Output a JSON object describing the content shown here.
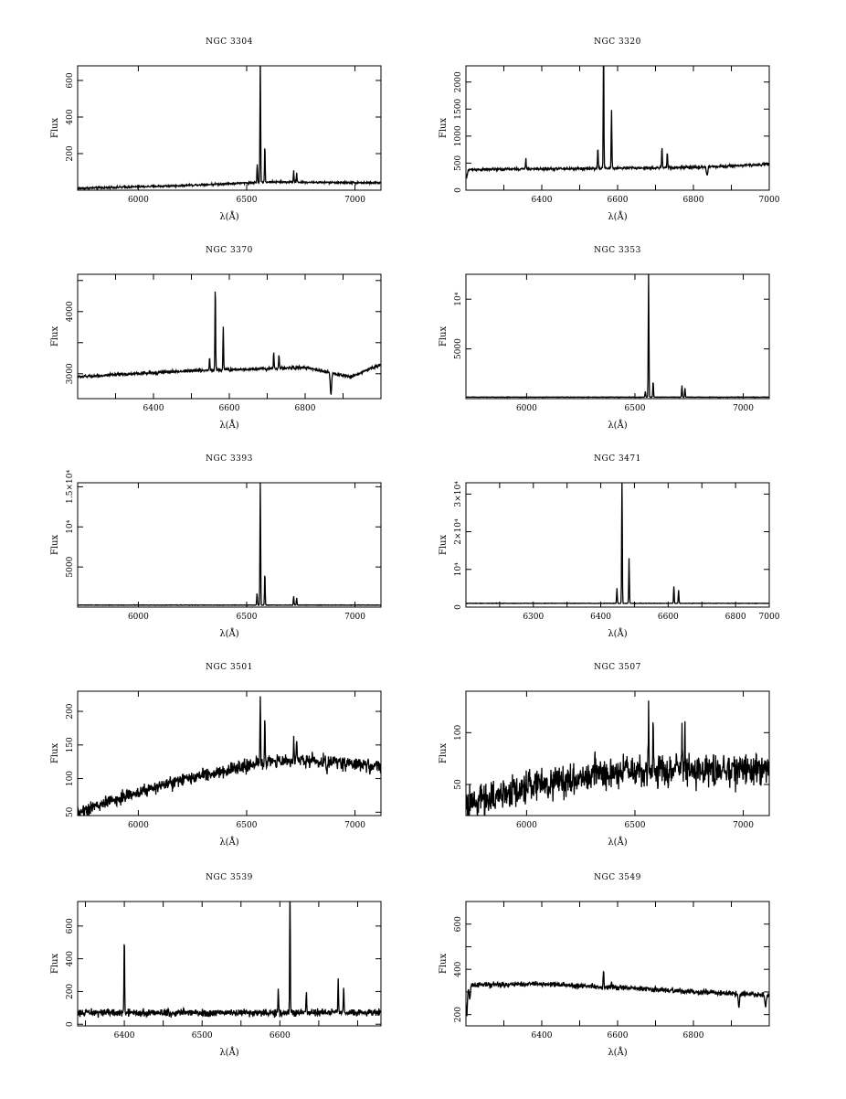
{
  "figure": {
    "panels_count": 10
  },
  "chart_data": [
    {
      "type": "line",
      "title": "NGC 3304",
      "xlabel": "λ(Å)",
      "ylabel": "Flux",
      "xlim": [
        5720,
        7120
      ],
      "ylim": [
        0,
        680
      ],
      "xticks": [
        6000,
        6500,
        7000
      ],
      "yticks": [
        200,
        400,
        600
      ],
      "ytick_labels": [
        "200",
        "400",
        "600"
      ],
      "continuum": [
        [
          5720,
          10
        ],
        [
          6200,
          25
        ],
        [
          6600,
          45
        ],
        [
          7120,
          40
        ]
      ],
      "noise": 4,
      "lines": [
        [
          6549,
          100
        ],
        [
          6563,
          680
        ],
        [
          6584,
          200
        ],
        [
          6717,
          60
        ],
        [
          6731,
          50
        ]
      ],
      "absorptions": []
    },
    {
      "type": "line",
      "title": "NGC 3320",
      "xlabel": "λ(Å)",
      "ylabel": "Flux",
      "xlim": [
        6200,
        7000
      ],
      "ylim": [
        0,
        2300
      ],
      "xticks": [
        6300,
        6400,
        6500,
        6600,
        6700,
        6800,
        6900,
        7000
      ],
      "xtick_labels": [
        "",
        "6400",
        "",
        "6600",
        "",
        "6800",
        "",
        "7000"
      ],
      "yticks": [
        0,
        500,
        1000,
        1500,
        2000
      ],
      "ytick_labels": [
        "0",
        "500",
        "1000",
        "1500",
        "2000"
      ],
      "continuum": [
        [
          6200,
          380
        ],
        [
          6500,
          400
        ],
        [
          6800,
          420
        ],
        [
          7000,
          480
        ]
      ],
      "noise": 18,
      "lines": [
        [
          6358,
          200
        ],
        [
          6548,
          380
        ],
        [
          6563,
          2250
        ],
        [
          6584,
          1100
        ],
        [
          6717,
          360
        ],
        [
          6731,
          300
        ]
      ],
      "absorptions": [
        [
          6202,
          -150
        ],
        [
          6836,
          -150
        ]
      ]
    },
    {
      "type": "line",
      "title": "NGC 3370",
      "xlabel": "λ(Å)",
      "ylabel": "Flux",
      "xlim": [
        6200,
        7000
      ],
      "ylim": [
        2600,
        4600
      ],
      "xticks": [
        6300,
        6400,
        6500,
        6600,
        6700,
        6800,
        6900
      ],
      "xtick_labels": [
        "",
        "6400",
        "",
        "6600",
        "",
        "6800",
        ""
      ],
      "yticks": [
        3000,
        3500,
        4000,
        4500
      ],
      "ytick_labels": [
        "3000",
        "",
        "4000",
        ""
      ],
      "continuum": [
        [
          6200,
          2950
        ],
        [
          6500,
          3050
        ],
        [
          6800,
          3100
        ],
        [
          6920,
          2950
        ],
        [
          7000,
          3150
        ]
      ],
      "noise": 18,
      "lines": [
        [
          6548,
          200
        ],
        [
          6563,
          1350
        ],
        [
          6584,
          700
        ],
        [
          6717,
          260
        ],
        [
          6731,
          220
        ]
      ],
      "absorptions": [
        [
          6868,
          -350
        ]
      ]
    },
    {
      "type": "line",
      "title": "NGC 3353",
      "xlabel": "λ(Å)",
      "ylabel": "Flux",
      "xlim": [
        5720,
        7120
      ],
      "ylim": [
        0,
        12500
      ],
      "xticks": [
        6000,
        6500,
        7000
      ],
      "yticks": [
        5000,
        10000
      ],
      "ytick_labels": [
        "5000",
        "10⁴"
      ],
      "continuum": [
        [
          5720,
          150
        ],
        [
          7120,
          150
        ]
      ],
      "noise": 15,
      "lines": [
        [
          6548,
          600
        ],
        [
          6563,
          12400
        ],
        [
          6584,
          1600
        ],
        [
          6717,
          1200
        ],
        [
          6731,
          900
        ]
      ],
      "absorptions": []
    },
    {
      "type": "line",
      "title": "NGC 3393",
      "xlabel": "λ(Å)",
      "ylabel": "Flux",
      "xlim": [
        5720,
        7120
      ],
      "ylim": [
        0,
        15500
      ],
      "xticks": [
        6000,
        6500,
        7000
      ],
      "yticks": [
        5000,
        10000,
        15000
      ],
      "ytick_labels": [
        "5000",
        "10⁴",
        "1.5×10⁴"
      ],
      "continuum": [
        [
          5720,
          250
        ],
        [
          7120,
          250
        ]
      ],
      "noise": 20,
      "lines": [
        [
          6548,
          1500
        ],
        [
          6563,
          15400
        ],
        [
          6584,
          4000
        ],
        [
          6717,
          1100
        ],
        [
          6731,
          900
        ]
      ],
      "absorptions": []
    },
    {
      "type": "line",
      "title": "NGC 3471",
      "xlabel": "λ(Å)",
      "ylabel": "Flux",
      "xlim": [
        6100,
        7000
      ],
      "ylim": [
        0,
        33000
      ],
      "xticks": [
        6200,
        6300,
        6400,
        6500,
        6600,
        6700,
        6800,
        6900,
        7000
      ],
      "xtick_labels": [
        "",
        "6300",
        "",
        "6400",
        "",
        "6600",
        "",
        "6800",
        "7000"
      ],
      "yticks": [
        0,
        10000,
        20000,
        30000
      ],
      "ytick_labels": [
        "0",
        "10⁴",
        "2×10⁴",
        "3×10⁴"
      ],
      "continuum": [
        [
          6100,
          1000
        ],
        [
          7000,
          1000
        ]
      ],
      "noise": 40,
      "lines": [
        [
          6548,
          4000
        ],
        [
          6563,
          32500
        ],
        [
          6584,
          12000
        ],
        [
          6717,
          4500
        ],
        [
          6731,
          3500
        ]
      ],
      "absorptions": []
    },
    {
      "type": "line",
      "title": "NGC 3501",
      "xlabel": "λ(Å)",
      "ylabel": "Flux",
      "xlim": [
        5720,
        7120
      ],
      "ylim": [
        45,
        230
      ],
      "xticks": [
        6000,
        6500,
        7000
      ],
      "yticks": [
        50,
        100,
        150,
        200
      ],
      "ytick_labels": [
        "50",
        "100",
        "150",
        "200"
      ],
      "continuum": [
        [
          5720,
          50
        ],
        [
          6000,
          80
        ],
        [
          6300,
          105
        ],
        [
          6600,
          125
        ],
        [
          6800,
          128
        ],
        [
          7120,
          118
        ]
      ],
      "noise": 7,
      "lines": [
        [
          6563,
          100
        ],
        [
          6584,
          60
        ],
        [
          6717,
          35
        ],
        [
          6731,
          30
        ]
      ],
      "absorptions": [
        [
          6870,
          -15
        ]
      ]
    },
    {
      "type": "line",
      "title": "NGC 3507",
      "xlabel": "λ(Å)",
      "ylabel": "Flux",
      "xlim": [
        5720,
        7120
      ],
      "ylim": [
        20,
        140
      ],
      "xticks": [
        6000,
        6500,
        7000
      ],
      "yticks": [
        50,
        100
      ],
      "ytick_labels": [
        "50",
        "100"
      ],
      "continuum": [
        [
          5720,
          30
        ],
        [
          6000,
          48
        ],
        [
          6400,
          62
        ],
        [
          7120,
          65
        ]
      ],
      "noise": 11,
      "lines": [
        [
          6563,
          60
        ],
        [
          6584,
          50
        ],
        [
          6717,
          40
        ],
        [
          6731,
          35
        ]
      ],
      "absorptions": []
    },
    {
      "type": "line",
      "title": "NGC 3539",
      "xlabel": "λ(Å)",
      "ylabel": "Flux",
      "xlim": [
        6290,
        6680
      ],
      "ylim": [
        -10,
        750
      ],
      "xticks": [
        6300,
        6350,
        6400,
        6450,
        6500,
        6550,
        6600,
        6650
      ],
      "xtick_labels": [
        "",
        "6400",
        "",
        "6500",
        "",
        "6600",
        "",
        ""
      ],
      "yticks": [
        0,
        200,
        400,
        600
      ],
      "ytick_labels": [
        "0",
        "200",
        "400",
        "600"
      ],
      "continuum": [
        [
          6290,
          70
        ],
        [
          6680,
          70
        ]
      ],
      "noise": 16,
      "lines": [
        [
          6350,
          450
        ],
        [
          6548,
          150
        ],
        [
          6563,
          740
        ],
        [
          6584,
          130
        ],
        [
          6625,
          200
        ],
        [
          6632,
          150
        ]
      ],
      "absorptions": []
    },
    {
      "type": "line",
      "title": "NGC 3549",
      "xlabel": "λ(Å)",
      "ylabel": "Flux",
      "xlim": [
        6200,
        7000
      ],
      "ylim": [
        150,
        700
      ],
      "xticks": [
        6300,
        6400,
        6500,
        6600,
        6700,
        6800,
        6900
      ],
      "xtick_labels": [
        "",
        "6400",
        "",
        "6600",
        "",
        "6800",
        ""
      ],
      "yticks": [
        200,
        300,
        400,
        500,
        600
      ],
      "ytick_labels": [
        "200",
        "",
        "400",
        "",
        "600"
      ],
      "continuum": [
        [
          6200,
          330
        ],
        [
          6400,
          335
        ],
        [
          6600,
          320
        ],
        [
          6800,
          300
        ],
        [
          6960,
          290
        ],
        [
          7000,
          285
        ]
      ],
      "noise": 8,
      "lines": [
        [
          6563,
          80
        ],
        [
          6584,
          30
        ]
      ],
      "absorptions": [
        [
          6202,
          -140
        ],
        [
          6210,
          -60
        ],
        [
          6920,
          -60
        ],
        [
          6990,
          -50
        ]
      ]
    }
  ]
}
